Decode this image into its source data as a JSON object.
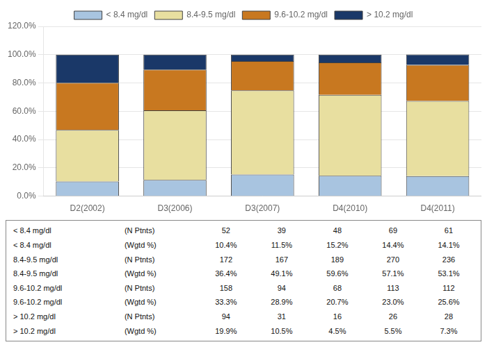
{
  "chart_data": {
    "type": "bar",
    "stacked": true,
    "categories": [
      "D2(2002)",
      "D3(2006)",
      "D3(2007)",
      "D4(2010)",
      "D4(2011)"
    ],
    "series": [
      {
        "name": "< 8.4 mg/dl",
        "color": "#a8c4e0",
        "values": [
          10.4,
          11.5,
          15.2,
          14.4,
          14.1
        ]
      },
      {
        "name": "8.4-9.5 mg/dl",
        "color": "#e8dfa0",
        "values": [
          36.4,
          49.1,
          59.6,
          57.1,
          53.1
        ]
      },
      {
        "name": "9.6-10.2 mg/dl",
        "color": "#c87820",
        "values": [
          33.3,
          28.9,
          20.7,
          23.0,
          25.6
        ]
      },
      {
        "name": "> 10.2 mg/dl",
        "color": "#1a3868",
        "values": [
          19.9,
          10.5,
          4.5,
          5.5,
          7.3
        ]
      }
    ],
    "ylim": [
      0,
      120
    ],
    "yticks": [
      {
        "value": 0,
        "label": "0.0%"
      },
      {
        "value": 20,
        "label": "20.0%"
      },
      {
        "value": 40,
        "label": "40.0%"
      },
      {
        "value": 60,
        "label": "60.0%"
      },
      {
        "value": 80,
        "label": "80.0%"
      },
      {
        "value": 100,
        "label": "100.0%"
      },
      {
        "value": 120,
        "label": "120.0%"
      }
    ],
    "grid": true,
    "legend": "top",
    "table": [
      [
        "< 8.4 mg/dl",
        "(N Ptnts)",
        "52",
        "39",
        "48",
        "69",
        "61"
      ],
      [
        "< 8.4 mg/dl",
        "(Wgtd %)",
        "10.4%",
        "11.5%",
        "15.2%",
        "14.4%",
        "14.1%"
      ],
      [
        "8.4-9.5 mg/dl",
        "(N Ptnts)",
        "172",
        "167",
        "189",
        "270",
        "236"
      ],
      [
        "8.4-9.5 mg/dl",
        "(Wgtd %)",
        "36.4%",
        "49.1%",
        "59.6%",
        "57.1%",
        "53.1%"
      ],
      [
        "9.6-10.2 mg/dl",
        "(N Ptnts)",
        "158",
        "94",
        "68",
        "113",
        "112"
      ],
      [
        "9.6-10.2 mg/dl",
        "(Wgtd %)",
        "33.3%",
        "28.9%",
        "20.7%",
        "23.0%",
        "25.6%"
      ],
      [
        "> 10.2 mg/dl",
        "(N Ptnts)",
        "94",
        "31",
        "16",
        "26",
        "28"
      ],
      [
        "> 10.2 mg/dl",
        "(Wgtd %)",
        "19.9%",
        "10.5%",
        "4.5%",
        "5.5%",
        "7.3%"
      ]
    ]
  }
}
